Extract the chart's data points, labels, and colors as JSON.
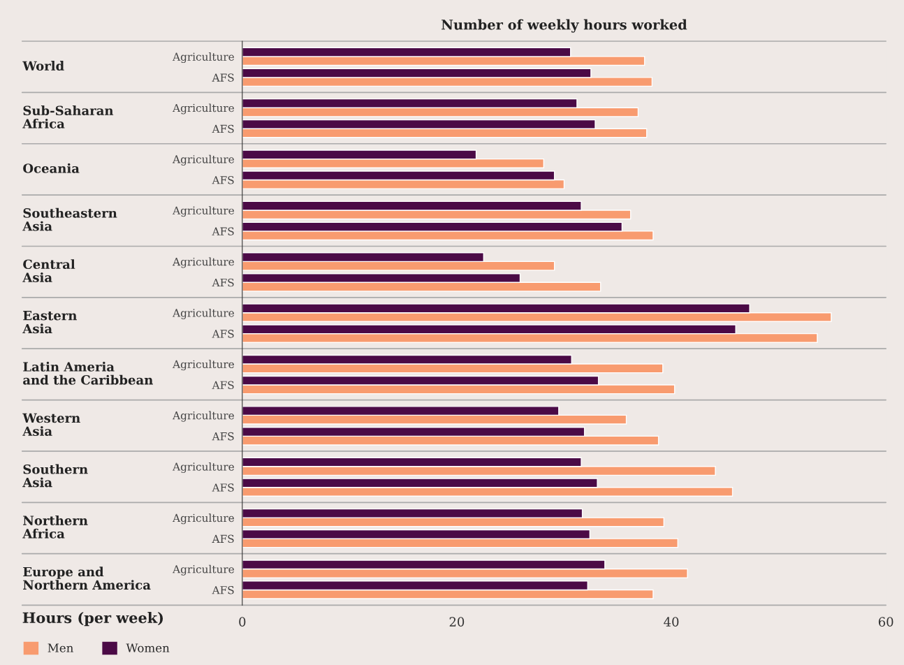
{
  "chart_data": {
    "type": "bar",
    "orientation": "horizontal",
    "title": "Number of weekly hours worked",
    "xlabel": "Hours (per week)",
    "categories": [
      "Agriculture",
      "AFS",
      "Agriculture",
      "AFS",
      "Agriculture",
      "AFS",
      "Agriculture",
      "AFS",
      "Agriculture",
      "AFS",
      "Agriculture",
      "AFS",
      "Agriculture",
      "AFS",
      "Agriculture",
      "AFS",
      "Agriculture",
      "AFS",
      "Agriculture",
      "AFS",
      "Agriculture",
      "AFS"
    ],
    "annotations": [
      "World",
      "Sub-Saharan\nAfrica",
      "Oceania",
      "Southeastern\nAsia",
      "Central\nAsia",
      "Eastern\nAsia",
      "Latin Ameria\nand the Caribbean",
      "Western\nAsia",
      "Southern\nAsia",
      "Northern\nAfrica",
      "Europe and\nNorthern America"
    ],
    "series": [
      {
        "name": "Men",
        "color": "#f89b6f",
        "values": [
          37.5,
          38.2,
          36.9,
          37.7,
          28.1,
          30.0,
          36.2,
          38.3,
          29.1,
          33.4,
          54.9,
          53.6,
          39.2,
          40.3,
          35.8,
          38.8,
          44.1,
          45.7,
          39.3,
          40.6,
          41.5,
          38.3
        ]
      },
      {
        "name": "Women",
        "color": "#4b0a46",
        "values": [
          30.6,
          32.5,
          31.2,
          32.9,
          21.8,
          29.1,
          31.6,
          35.4,
          22.5,
          25.9,
          47.3,
          46.0,
          30.7,
          33.2,
          29.5,
          31.9,
          31.6,
          33.1,
          31.7,
          32.4,
          33.8,
          32.2
        ]
      }
    ],
    "xlim": [
      0,
      60
    ],
    "xticks": [
      0,
      20,
      40,
      60
    ],
    "grid": false,
    "legend": "bottom left"
  }
}
